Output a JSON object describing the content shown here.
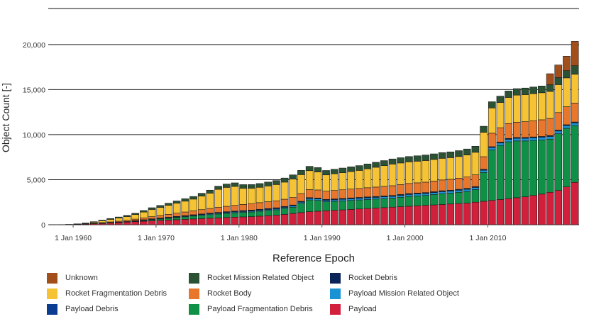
{
  "chart_data": {
    "type": "bar",
    "stacked": true,
    "xlabel": "Reference Epoch",
    "ylabel": "Object Count [-]",
    "ylim": [
      0,
      24000
    ],
    "yticks": [
      0,
      5000,
      10000,
      15000,
      20000
    ],
    "ytick_labels": [
      "0",
      "5,000",
      "10,000",
      "15,000",
      "20,000"
    ],
    "xticks": [
      {
        "year": 1960,
        "label": "1 Jan 1960"
      },
      {
        "year": 1970,
        "label": "1 Jan 1970"
      },
      {
        "year": 1980,
        "label": "1 Jan 1980"
      },
      {
        "year": 1990,
        "label": "1 Jan 1990"
      },
      {
        "year": 2000,
        "label": "1 Jan 2000"
      },
      {
        "year": 2010,
        "label": "1 Jan 2010"
      }
    ],
    "grid": "horizontal",
    "legend_position": "bottom",
    "years": [
      1957,
      1958,
      1959,
      1960,
      1961,
      1962,
      1963,
      1964,
      1965,
      1966,
      1967,
      1968,
      1969,
      1970,
      1971,
      1972,
      1973,
      1974,
      1975,
      1976,
      1977,
      1978,
      1979,
      1980,
      1981,
      1982,
      1983,
      1984,
      1985,
      1986,
      1987,
      1988,
      1989,
      1990,
      1991,
      1992,
      1993,
      1994,
      1995,
      1996,
      1997,
      1998,
      1999,
      2000,
      2001,
      2002,
      2003,
      2004,
      2005,
      2006,
      2007,
      2008,
      2009,
      2010,
      2011,
      2012,
      2013,
      2014,
      2015,
      2016,
      2017,
      2018,
      2019,
      2020
    ],
    "series": [
      {
        "name": "Payload",
        "color": "#d11f3c",
        "values": [
          5,
          10,
          20,
          40,
          60,
          100,
          140,
          190,
          240,
          290,
          340,
          390,
          440,
          480,
          520,
          560,
          600,
          640,
          680,
          720,
          760,
          800,
          840,
          870,
          900,
          950,
          1000,
          1050,
          1150,
          1250,
          1350,
          1450,
          1500,
          1550,
          1600,
          1650,
          1700,
          1750,
          1800,
          1850,
          1900,
          1950,
          2000,
          2050,
          2100,
          2150,
          2200,
          2250,
          2300,
          2350,
          2400,
          2500,
          2600,
          2700,
          2800,
          2900,
          3000,
          3100,
          3250,
          3400,
          3600,
          3800,
          4200,
          4700
        ]
      },
      {
        "name": "Payload Fragmentation Debris",
        "color": "#0e9146",
        "values": [
          0,
          0,
          0,
          0,
          0,
          0,
          0,
          0,
          0,
          0,
          50,
          80,
          120,
          160,
          200,
          240,
          280,
          320,
          360,
          400,
          430,
          460,
          480,
          500,
          520,
          550,
          580,
          610,
          650,
          700,
          1000,
          1300,
          1200,
          1000,
          1000,
          1000,
          1000,
          1000,
          1000,
          1000,
          1000,
          1000,
          1050,
          1100,
          1100,
          1100,
          1150,
          1200,
          1200,
          1250,
          1300,
          1400,
          3200,
          5600,
          6000,
          6300,
          6300,
          6200,
          6100,
          6000,
          5900,
          6300,
          6500,
          6300
        ]
      },
      {
        "name": "Payload Debris",
        "color": "#0a3d91",
        "values": [
          0,
          0,
          0,
          0,
          0,
          0,
          0,
          0,
          0,
          0,
          0,
          0,
          0,
          0,
          0,
          0,
          0,
          0,
          0,
          0,
          0,
          0,
          0,
          0,
          0,
          0,
          0,
          0,
          0,
          0,
          0,
          0,
          0,
          0,
          0,
          0,
          0,
          0,
          0,
          0,
          0,
          0,
          0,
          0,
          0,
          0,
          0,
          0,
          0,
          0,
          0,
          0,
          0,
          0,
          0,
          0,
          0,
          0,
          0,
          0,
          0,
          0,
          0,
          0
        ]
      },
      {
        "name": "Payload Mission Related Object",
        "color": "#1a93d4",
        "values": [
          0,
          0,
          0,
          5,
          10,
          15,
          20,
          25,
          30,
          35,
          40,
          45,
          50,
          55,
          60,
          65,
          70,
          75,
          80,
          85,
          90,
          95,
          100,
          100,
          105,
          110,
          115,
          120,
          130,
          140,
          150,
          160,
          160,
          160,
          165,
          170,
          175,
          180,
          185,
          190,
          195,
          200,
          205,
          210,
          210,
          215,
          215,
          220,
          225,
          230,
          235,
          240,
          250,
          260,
          270,
          280,
          285,
          290,
          295,
          300,
          300,
          300,
          300,
          300
        ]
      },
      {
        "name": "Rocket Debris",
        "color": "#0a2459",
        "values": [
          0,
          0,
          0,
          0,
          5,
          10,
          15,
          20,
          25,
          30,
          35,
          40,
          45,
          50,
          55,
          60,
          65,
          70,
          75,
          80,
          85,
          90,
          95,
          100,
          100,
          100,
          100,
          100,
          100,
          100,
          100,
          100,
          100,
          100,
          100,
          100,
          100,
          100,
          100,
          100,
          100,
          100,
          100,
          100,
          100,
          100,
          100,
          100,
          100,
          100,
          100,
          100,
          100,
          100,
          100,
          100,
          100,
          100,
          100,
          100,
          100,
          100,
          100,
          100
        ]
      },
      {
        "name": "Rocket Body",
        "color": "#e8772c",
        "values": [
          0,
          0,
          5,
          10,
          20,
          40,
          60,
          80,
          100,
          130,
          160,
          200,
          240,
          280,
          320,
          360,
          400,
          440,
          480,
          520,
          560,
          600,
          640,
          680,
          720,
          740,
          760,
          780,
          800,
          830,
          860,
          890,
          900,
          920,
          940,
          960,
          980,
          1000,
          1020,
          1040,
          1060,
          1080,
          1100,
          1120,
          1140,
          1160,
          1180,
          1200,
          1220,
          1240,
          1260,
          1300,
          1400,
          1500,
          1600,
          1650,
          1700,
          1750,
          1800,
          1850,
          1900,
          1950,
          2000,
          2100
        ]
      },
      {
        "name": "Rocket Fragmentation Debris",
        "color": "#f5c333",
        "values": [
          0,
          0,
          0,
          20,
          60,
          120,
          200,
          280,
          350,
          420,
          500,
          650,
          800,
          900,
          1000,
          1100,
          1200,
          1300,
          1500,
          1700,
          2000,
          2100,
          2100,
          1800,
          1700,
          1700,
          1750,
          1800,
          1900,
          2050,
          2100,
          2100,
          2000,
          1800,
          1850,
          1900,
          1950,
          2000,
          2100,
          2200,
          2300,
          2400,
          2400,
          2400,
          2400,
          2400,
          2400,
          2400,
          2400,
          2400,
          2450,
          2500,
          2700,
          2800,
          2800,
          2900,
          3000,
          3000,
          3000,
          3000,
          3000,
          3100,
          3200,
          3200
        ]
      },
      {
        "name": "Rocket Mission Related Object",
        "color": "#2c5234",
        "values": [
          0,
          5,
          10,
          20,
          30,
          50,
          70,
          90,
          110,
          130,
          150,
          170,
          190,
          210,
          230,
          250,
          270,
          290,
          310,
          330,
          350,
          370,
          390,
          400,
          410,
          420,
          430,
          440,
          450,
          460,
          470,
          480,
          480,
          490,
          500,
          510,
          520,
          530,
          540,
          550,
          560,
          570,
          580,
          590,
          600,
          610,
          620,
          630,
          640,
          650,
          660,
          670,
          680,
          690,
          700,
          710,
          720,
          730,
          740,
          750,
          760,
          780,
          800,
          950
        ]
      },
      {
        "name": "Unknown",
        "color": "#a34f1b",
        "values": [
          0,
          0,
          0,
          0,
          0,
          0,
          0,
          0,
          0,
          0,
          0,
          0,
          0,
          0,
          0,
          0,
          0,
          0,
          0,
          0,
          0,
          0,
          0,
          0,
          0,
          0,
          0,
          0,
          0,
          0,
          0,
          0,
          0,
          0,
          0,
          0,
          0,
          0,
          0,
          0,
          0,
          0,
          0,
          0,
          0,
          0,
          0,
          0,
          0,
          0,
          0,
          0,
          0,
          0,
          0,
          0,
          0,
          0,
          0,
          0,
          1200,
          1400,
          1600,
          2700
        ]
      }
    ]
  },
  "legend": [
    {
      "label": "Unknown",
      "color": "#a34f1b"
    },
    {
      "label": "Rocket Mission Related Object",
      "color": "#2c5234"
    },
    {
      "label": "Rocket Debris",
      "color": "#0a2459"
    },
    {
      "label": "Rocket Fragmentation Debris",
      "color": "#f5c333"
    },
    {
      "label": "Rocket Body",
      "color": "#e8772c"
    },
    {
      "label": "Payload Mission Related Object",
      "color": "#1a93d4"
    },
    {
      "label": "Payload Debris",
      "color": "#0a3d91"
    },
    {
      "label": "Payload Fragmentation Debris",
      "color": "#0e9146"
    },
    {
      "label": "Payload",
      "color": "#d11f3c"
    }
  ]
}
